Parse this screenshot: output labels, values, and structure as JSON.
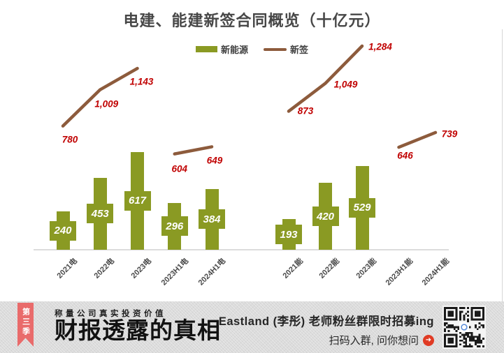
{
  "title": "电建、能建新签合同概览（十亿元）",
  "legend": {
    "items": [
      {
        "label": "新能源",
        "marker": "bar",
        "color": "#8A9A23"
      },
      {
        "label": "新签",
        "marker": "line",
        "color": "#8D5B3C"
      }
    ]
  },
  "chart_data": {
    "type": "bar",
    "title": "电建、能建新签合同概览（十亿元）",
    "categories": [
      "2021电",
      "2022电",
      "2023电",
      "2023H1电",
      "2024H1电",
      "2021能",
      "2022能",
      "2023能",
      "2023H1能",
      "2024H1能"
    ],
    "series": [
      {
        "name": "新能源",
        "type": "bar",
        "color": "#8A9A23",
        "values": [
          240,
          453,
          617,
          296,
          384,
          193,
          420,
          529,
          null,
          null
        ]
      },
      {
        "name": "新签",
        "type": "line",
        "color": "#8D5B3C",
        "segments": [
          {
            "start_index": 0,
            "values": [
              780,
              1009,
              1143
            ]
          },
          {
            "start_index": 3,
            "values": [
              604,
              649
            ]
          },
          {
            "start_index": 5,
            "values": [
              873,
              1049,
              1284
            ]
          },
          {
            "start_index": 8,
            "values": [
              646,
              739
            ]
          }
        ]
      }
    ],
    "value_label_colors": {
      "bar": "#FFFFFF",
      "line": "#C00000"
    },
    "ylim": [
      0,
      1400
    ],
    "grid": false,
    "legend_position": "top-center"
  },
  "banner": {
    "ribbon_text": "第三季",
    "ribbon_color": "#E96B6B",
    "subtitle": "称量公司真实投资价值",
    "main_title": "财报透露的真相",
    "promo_line1": "Eastland (李彤) 老师粉丝群限时招募ing",
    "promo_line2": "扫码入群, 问你想问",
    "arrow_icon": "➜"
  }
}
